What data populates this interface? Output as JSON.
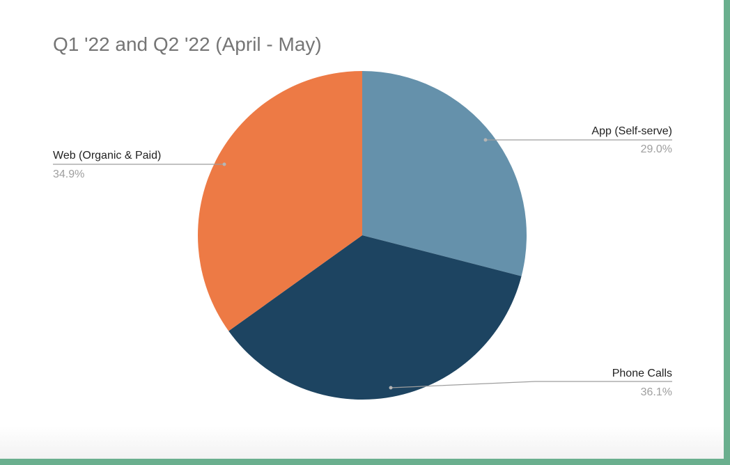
{
  "chart_data": {
    "type": "pie",
    "title": "Q1 '22 and Q2 '22 (April - May)",
    "slices": [
      {
        "label": "App (Self-serve)",
        "value": 29.0,
        "percent_label": "29.0%",
        "color": "#6591ab"
      },
      {
        "label": "Phone Calls",
        "value": 36.1,
        "percent_label": "36.1%",
        "color": "#1d4461"
      },
      {
        "label": "Web (Organic & Paid)",
        "value": 34.9,
        "percent_label": "34.9%",
        "color": "#ed7a45"
      }
    ],
    "start_angle": "12 o'clock",
    "direction": "clockwise",
    "legend": "none"
  },
  "colors": {
    "frame_border": "#6aaf8e",
    "title_text": "#757575",
    "label_text": "#222222",
    "percent_text": "#9e9e9e",
    "leader_line": "#9e9e9e"
  }
}
